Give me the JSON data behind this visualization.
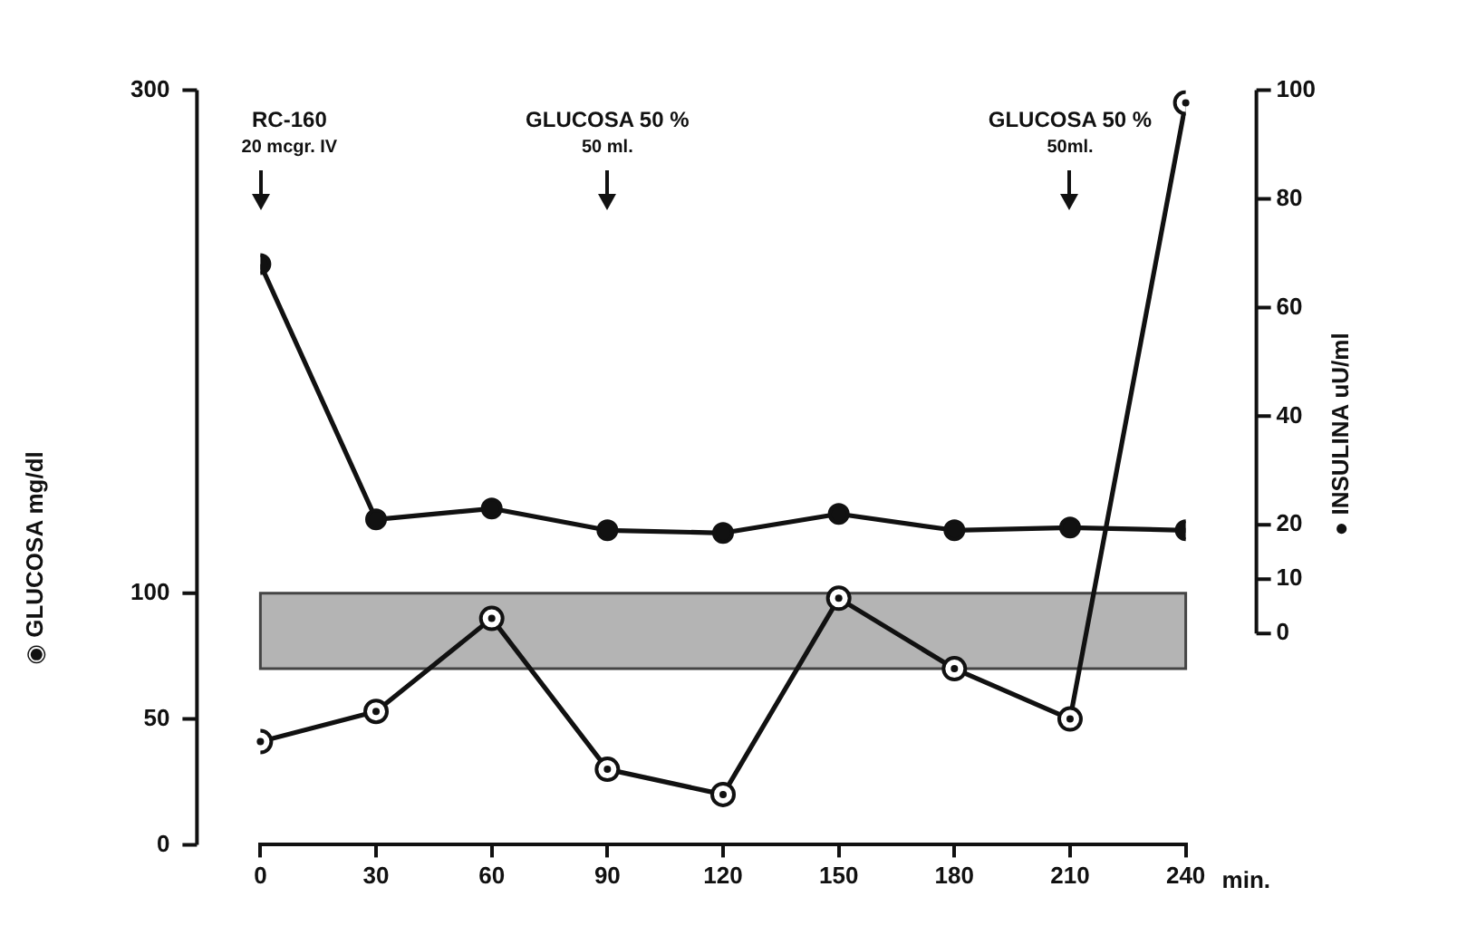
{
  "chart_data": {
    "type": "line",
    "xlabel": "min.",
    "ylabel": "◉ GLUCOSA mg/dl",
    "y2label": "● INSULINA uU/ml",
    "x": [
      0,
      30,
      60,
      90,
      120,
      150,
      180,
      210,
      240
    ],
    "xlim": [
      0,
      240
    ],
    "xticks": [
      0,
      30,
      60,
      90,
      120,
      150,
      180,
      210,
      240
    ],
    "ylim": [
      0,
      300
    ],
    "yticks": [
      0,
      50,
      100,
      300
    ],
    "y2lim": [
      0,
      100
    ],
    "y2ticks": [
      0,
      10,
      20,
      40,
      60,
      80,
      100
    ],
    "marker": "circle",
    "line_style": "solid",
    "series": [
      {
        "color": "#111111",
        "values": [
          41,
          53,
          90,
          30,
          20,
          98,
          70,
          50,
          295
        ]
      },
      {
        "color": "#111111",
        "axis": "y2",
        "values": [
          68,
          21,
          23,
          19,
          18.5,
          22,
          19,
          19.5,
          19
        ]
      }
    ],
    "bands": [
      {
        "axis": "y",
        "from": 70,
        "to": 100,
        "color": "#444444"
      }
    ],
    "annotations": [
      "RC-160\n20 mcgr. IV",
      "GLUCOSA 50 %\n50 ml.",
      "GLUCOSA 50 %\n50ml."
    ]
  }
}
